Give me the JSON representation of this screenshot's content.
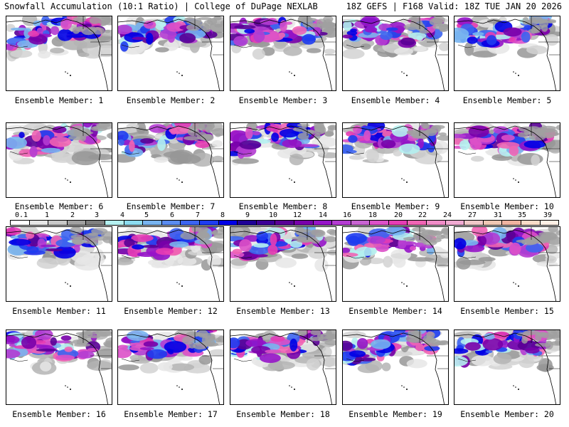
{
  "header": {
    "title_left": "Snowfall Accumulation (10:1 Ratio) | College of DuPage NEXLAB",
    "title_right": "18Z GEFS | F168 Valid: 18Z TUE JAN 20 2026"
  },
  "members": [
    {
      "label": "Ensemble Member: 1"
    },
    {
      "label": "Ensemble Member: 2"
    },
    {
      "label": "Ensemble Member: 3"
    },
    {
      "label": "Ensemble Member: 4"
    },
    {
      "label": "Ensemble Member: 5"
    },
    {
      "label": "Ensemble Member: 6"
    },
    {
      "label": "Ensemble Member: 7"
    },
    {
      "label": "Ensemble Member: 8"
    },
    {
      "label": "Ensemble Member: 9"
    },
    {
      "label": "Ensemble Member: 10"
    },
    {
      "label": "Ensemble Member: 11"
    },
    {
      "label": "Ensemble Member: 12"
    },
    {
      "label": "Ensemble Member: 13"
    },
    {
      "label": "Ensemble Member: 14"
    },
    {
      "label": "Ensemble Member: 15"
    },
    {
      "label": "Ensemble Member: 16"
    },
    {
      "label": "Ensemble Member: 17"
    },
    {
      "label": "Ensemble Member: 18"
    },
    {
      "label": "Ensemble Member: 19"
    },
    {
      "label": "Ensemble Member: 20"
    }
  ],
  "legend": {
    "ticks": [
      "0.1",
      "1",
      "2",
      "3",
      "4",
      "5",
      "6",
      "7",
      "8",
      "9",
      "10",
      "12",
      "14",
      "16",
      "18",
      "20",
      "22",
      "24",
      "27",
      "31",
      "35",
      "39"
    ],
    "colors": [
      "#ffffff",
      "#e6e6e6",
      "#c8c8c8",
      "#a0a0a0",
      "#808080",
      "#b4f0f0",
      "#8cdcf0",
      "#78b4f0",
      "#5a8cf0",
      "#3c64f0",
      "#1e3cf0",
      "#0000e6",
      "#1e0096",
      "#3c0096",
      "#5a0096",
      "#7800aa",
      "#9614c8",
      "#b43cd2",
      "#c864d2",
      "#dc50c8",
      "#e63cb4",
      "#f064b4",
      "#f08cc8",
      "#f0aad2",
      "#f0c8c8",
      "#f0c8b4",
      "#f0b4a0",
      "#fadcc8",
      "#fff0e6"
    ]
  }
}
